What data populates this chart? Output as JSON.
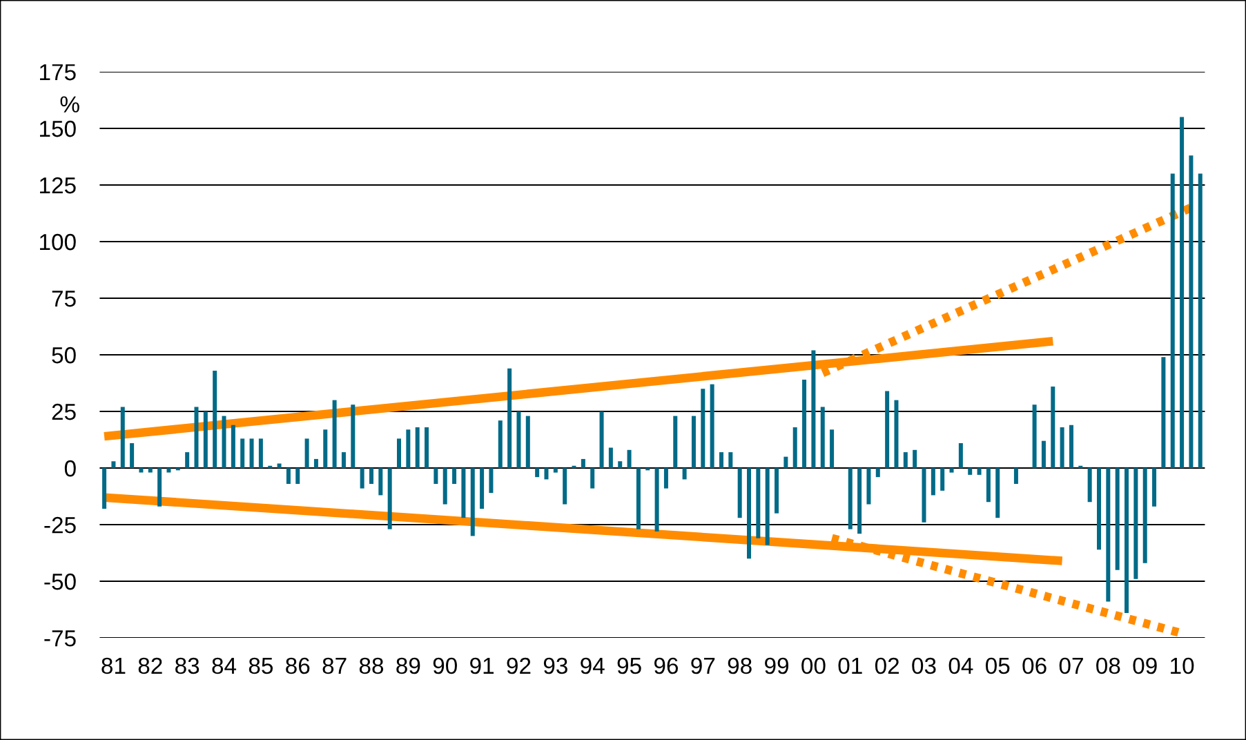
{
  "chart_data": {
    "type": "bar",
    "ylabel": "%",
    "categories": [
      null,
      "81",
      null,
      null,
      null,
      "82",
      null,
      null,
      null,
      "83",
      null,
      null,
      null,
      "84",
      null,
      null,
      null,
      "85",
      null,
      null,
      null,
      "86",
      null,
      null,
      null,
      "87",
      null,
      null,
      null,
      "88",
      null,
      null,
      null,
      "89",
      null,
      null,
      null,
      "90",
      null,
      null,
      null,
      "91",
      null,
      null,
      null,
      "92",
      null,
      null,
      null,
      "93",
      null,
      null,
      null,
      "94",
      null,
      null,
      null,
      "95",
      null,
      null,
      null,
      "96",
      null,
      null,
      null,
      "97",
      null,
      null,
      null,
      "98",
      null,
      null,
      null,
      "99",
      null,
      null,
      null,
      "00",
      null,
      null,
      null,
      "01",
      null,
      null,
      null,
      "02",
      null,
      null,
      null,
      "03",
      null,
      null,
      null,
      "04",
      null,
      null,
      null,
      "05",
      null,
      null,
      null,
      "06",
      null,
      null,
      null,
      "07",
      null,
      null,
      null,
      "08",
      null,
      null,
      null,
      "09",
      null,
      null,
      null,
      "10",
      null,
      null
    ],
    "series": [
      {
        "color": "#006a87",
        "values": [
          -18,
          3,
          27,
          11,
          -2,
          -2,
          -17,
          -2,
          -1,
          7,
          27,
          25,
          43,
          23,
          19,
          13,
          13,
          13,
          1,
          2,
          -7,
          -7,
          13,
          4,
          17,
          30,
          7,
          28,
          -9,
          -7,
          -12,
          -27,
          13,
          17,
          18,
          18,
          -7,
          -16,
          -7,
          -22,
          -30,
          -18,
          -11,
          21,
          44,
          25,
          23,
          -4,
          -5,
          -2,
          -16,
          1,
          4,
          -9,
          25,
          9,
          3,
          8,
          -27,
          -1,
          -28,
          -9,
          23,
          -5,
          23,
          35,
          37,
          7,
          7,
          -22,
          -40,
          -31,
          -34,
          -20,
          5,
          18,
          39,
          52,
          27,
          17,
          0,
          -27,
          -29,
          -16,
          -4,
          34,
          30,
          7,
          8,
          -24,
          -12,
          -10,
          -2,
          11,
          -3,
          -3,
          -15,
          -22,
          0,
          -7,
          0,
          28,
          12,
          36,
          18,
          19,
          1,
          -15,
          -36,
          -59,
          -45,
          -64,
          -49,
          -42,
          -17,
          49,
          130,
          155,
          138,
          130
        ]
      },
      {
        "type": "line",
        "color": "#ff8c00",
        "line_style": "solid",
        "values": [
          14,
          null,
          null,
          null,
          null,
          null,
          null,
          null,
          null,
          null,
          null,
          null,
          null,
          null,
          null,
          null,
          null,
          null,
          null,
          null,
          null,
          null,
          null,
          null,
          null,
          null,
          null,
          null,
          null,
          null,
          null,
          null,
          null,
          null,
          null,
          null,
          null,
          null,
          null,
          null,
          null,
          null,
          null,
          null,
          null,
          null,
          null,
          null,
          null,
          null,
          null,
          null,
          null,
          null,
          null,
          null,
          null,
          null,
          null,
          null,
          null,
          null,
          null,
          null,
          null,
          null,
          null,
          null,
          null,
          null,
          null,
          null,
          null,
          null,
          null,
          null,
          null,
          null,
          null,
          null,
          null,
          null,
          null,
          null,
          null,
          null,
          null,
          null,
          null,
          null,
          null,
          null,
          null,
          null,
          null,
          null,
          null,
          null,
          null,
          null,
          null,
          null,
          null,
          56,
          null,
          null,
          null,
          null,
          null,
          null,
          null,
          null,
          null,
          null,
          null,
          null,
          null,
          null,
          null,
          null
        ]
      },
      {
        "type": "line",
        "color": "#ff8c00",
        "line_style": "solid",
        "values": [
          -13,
          null,
          null,
          null,
          null,
          null,
          null,
          null,
          null,
          null,
          null,
          null,
          null,
          null,
          null,
          null,
          null,
          null,
          null,
          null,
          null,
          null,
          null,
          null,
          null,
          null,
          null,
          null,
          null,
          null,
          null,
          null,
          null,
          null,
          null,
          null,
          null,
          null,
          null,
          null,
          null,
          null,
          null,
          null,
          null,
          null,
          null,
          null,
          null,
          null,
          null,
          null,
          null,
          null,
          null,
          null,
          null,
          null,
          null,
          null,
          null,
          null,
          null,
          null,
          null,
          null,
          null,
          null,
          null,
          null,
          null,
          null,
          null,
          null,
          null,
          null,
          null,
          null,
          null,
          null,
          null,
          null,
          null,
          null,
          null,
          null,
          null,
          null,
          null,
          null,
          null,
          null,
          null,
          null,
          null,
          null,
          null,
          null,
          null,
          null,
          null,
          null,
          null,
          null,
          -41,
          null,
          null,
          null,
          null,
          null,
          null,
          null,
          null,
          null,
          null,
          null,
          null,
          null,
          null,
          null
        ]
      },
      {
        "type": "line",
        "color": "#ff8c00",
        "line_style": "dotted",
        "values": [
          null,
          null,
          null,
          null,
          null,
          null,
          null,
          null,
          null,
          null,
          null,
          null,
          null,
          null,
          null,
          null,
          null,
          null,
          null,
          null,
          null,
          null,
          null,
          null,
          null,
          null,
          null,
          null,
          null,
          null,
          null,
          null,
          null,
          null,
          null,
          null,
          null,
          null,
          null,
          null,
          null,
          null,
          null,
          null,
          null,
          null,
          null,
          null,
          null,
          null,
          null,
          null,
          null,
          null,
          null,
          null,
          null,
          null,
          null,
          null,
          null,
          null,
          null,
          null,
          null,
          null,
          null,
          null,
          null,
          null,
          null,
          null,
          null,
          null,
          null,
          null,
          null,
          null,
          42,
          null,
          null,
          null,
          null,
          null,
          null,
          null,
          null,
          null,
          null,
          null,
          null,
          null,
          null,
          null,
          null,
          null,
          null,
          null,
          null,
          null,
          null,
          null,
          null,
          null,
          null,
          null,
          null,
          null,
          null,
          null,
          null,
          null,
          null,
          null,
          null,
          null,
          null,
          null,
          115,
          null
        ]
      },
      {
        "type": "line",
        "color": "#ff8c00",
        "line_style": "dotted",
        "values": [
          null,
          null,
          null,
          null,
          null,
          null,
          null,
          null,
          null,
          null,
          null,
          null,
          null,
          null,
          null,
          null,
          null,
          null,
          null,
          null,
          null,
          null,
          null,
          null,
          null,
          null,
          null,
          null,
          null,
          null,
          null,
          null,
          null,
          null,
          null,
          null,
          null,
          null,
          null,
          null,
          null,
          null,
          null,
          null,
          null,
          null,
          null,
          null,
          null,
          null,
          null,
          null,
          null,
          null,
          null,
          null,
          null,
          null,
          null,
          null,
          null,
          null,
          null,
          null,
          null,
          null,
          null,
          null,
          null,
          null,
          null,
          null,
          null,
          null,
          null,
          null,
          null,
          null,
          null,
          -31,
          null,
          null,
          null,
          null,
          null,
          null,
          null,
          null,
          null,
          null,
          null,
          null,
          null,
          null,
          null,
          null,
          null,
          null,
          null,
          null,
          null,
          null,
          null,
          null,
          null,
          null,
          null,
          null,
          null,
          null,
          null,
          null,
          null,
          null,
          null,
          null,
          null,
          -73,
          null,
          null
        ]
      }
    ],
    "ylim": [
      -75,
      175
    ],
    "yticks": [
      -75,
      -50,
      -25,
      0,
      25,
      50,
      75,
      100,
      125,
      150,
      175
    ],
    "grid": "y"
  }
}
